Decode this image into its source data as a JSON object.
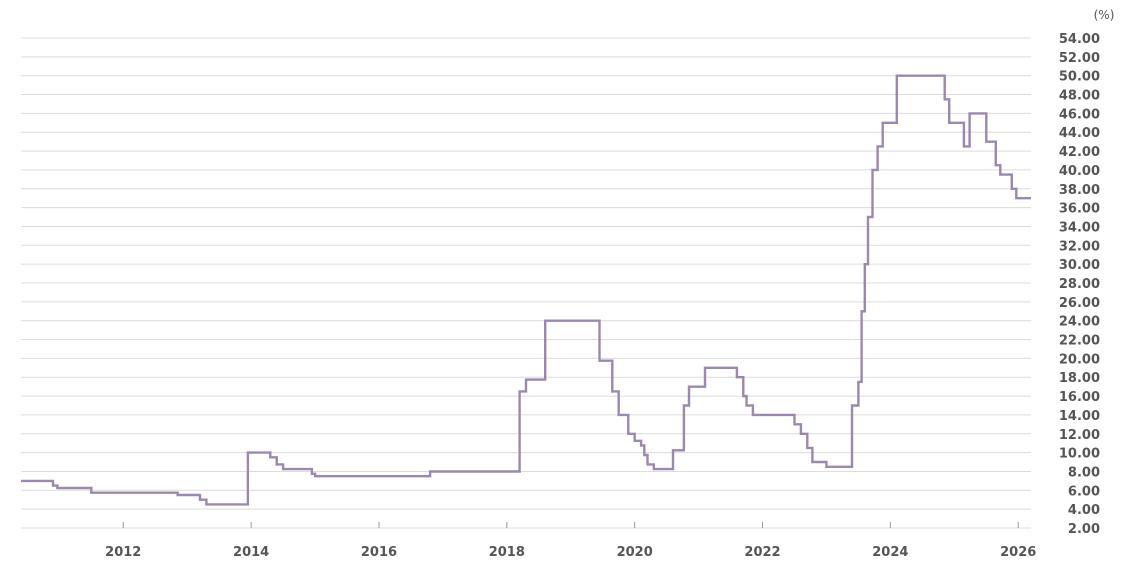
{
  "chart_data": {
    "type": "line",
    "title": "",
    "xlabel": "",
    "ylabel": "",
    "y_unit_label": "(%)",
    "xlim": [
      2010.4,
      2026.2
    ],
    "ylim": [
      2,
      54
    ],
    "y_ticks": [
      2,
      4,
      6,
      8,
      10,
      12,
      14,
      16,
      18,
      20,
      22,
      24,
      26,
      28,
      30,
      32,
      34,
      36,
      38,
      40,
      42,
      44,
      46,
      48,
      50,
      52,
      54
    ],
    "y_tick_labels": [
      "2.00",
      "4.00",
      "6.00",
      "8.00",
      "10.00",
      "12.00",
      "14.00",
      "16.00",
      "18.00",
      "20.00",
      "22.00",
      "24.00",
      "26.00",
      "28.00",
      "30.00",
      "32.00",
      "34.00",
      "36.00",
      "38.00",
      "40.00",
      "42.00",
      "44.00",
      "46.00",
      "48.00",
      "50.00",
      "52.00",
      "54.00"
    ],
    "x_ticks": [
      2012,
      2014,
      2016,
      2018,
      2020,
      2022,
      2024,
      2026
    ],
    "x_tick_labels": [
      "2012",
      "2014",
      "2016",
      "2018",
      "2020",
      "2022",
      "2024",
      "2026"
    ],
    "grid": true,
    "y_axis_side": "right",
    "step": true,
    "line_color": "#9b88b0",
    "series": [
      {
        "x": [
          2010.4,
          2010.9,
          2010.97,
          2011.5,
          2012.85,
          2013.2,
          2013.3,
          2013.95,
          2014.3,
          2014.4,
          2014.5,
          2014.95,
          2015.0,
          2016.8,
          2018.2,
          2018.3,
          2018.6,
          2019.45,
          2019.65,
          2019.75,
          2019.9,
          2020.0,
          2020.1,
          2020.15,
          2020.2,
          2020.3,
          2020.6,
          2020.77,
          2020.85,
          2021.1,
          2021.6,
          2021.7,
          2021.75,
          2021.85,
          2022.5,
          2022.6,
          2022.7,
          2022.78,
          2023.0,
          2023.4,
          2023.5,
          2023.55,
          2023.6,
          2023.65,
          2023.72,
          2023.8,
          2023.88,
          2023.95,
          2024.1,
          2024.85,
          2024.92,
          2025.15,
          2025.24,
          2025.5,
          2025.65,
          2025.72,
          2025.9,
          2025.97,
          2026.2
        ],
        "y": [
          7.0,
          6.5,
          6.25,
          5.75,
          5.5,
          5.0,
          4.5,
          10.0,
          9.5,
          8.75,
          8.25,
          7.75,
          7.5,
          8.0,
          16.5,
          17.75,
          24.0,
          19.75,
          16.5,
          14.0,
          12.0,
          11.25,
          10.75,
          9.75,
          8.75,
          8.25,
          10.25,
          15.0,
          17.0,
          19.0,
          18.0,
          16.0,
          15.0,
          14.0,
          13.0,
          12.0,
          10.5,
          9.0,
          8.5,
          15.0,
          17.5,
          25.0,
          30.0,
          35.0,
          40.0,
          42.5,
          45.0,
          45.0,
          50.0,
          47.5,
          45.0,
          42.5,
          46.0,
          43.0,
          40.5,
          39.5,
          38.0,
          37.0,
          37.0
        ]
      }
    ]
  }
}
